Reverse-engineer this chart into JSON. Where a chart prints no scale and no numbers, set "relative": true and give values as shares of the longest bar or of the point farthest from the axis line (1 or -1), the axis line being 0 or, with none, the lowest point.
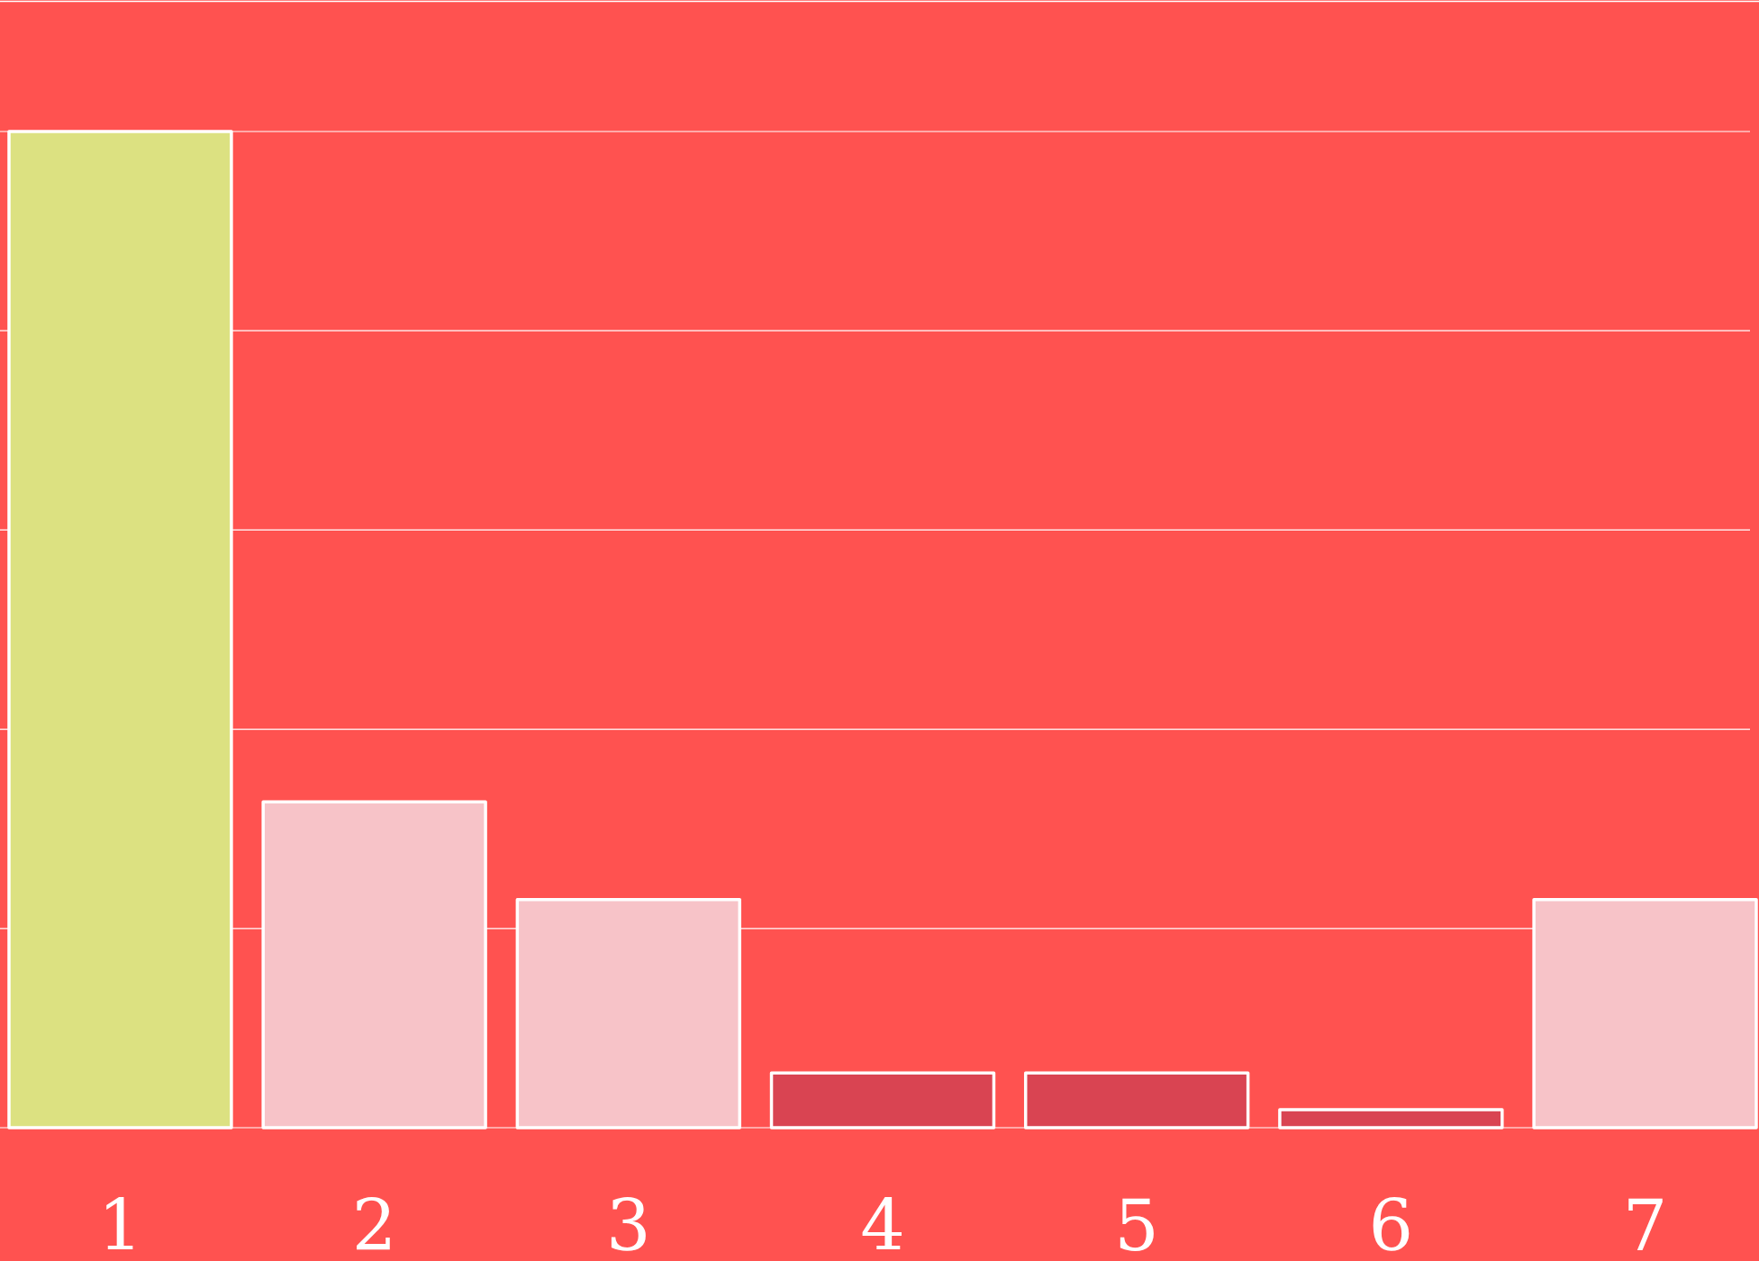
{
  "chart_data": {
    "type": "bar",
    "relative": true,
    "categories": [
      "1",
      "2",
      "3",
      "4",
      "5",
      "6",
      "7"
    ],
    "values": [
      1,
      0.327,
      0.229,
      0.055,
      0.055,
      0.018,
      0.229
    ],
    "colors": [
      "#dce181",
      "#f7c3c8",
      "#f7c3c8",
      "#d94452",
      "#d94452",
      "#d94452",
      "#f7c3c8"
    ],
    "grid": "y"
  }
}
